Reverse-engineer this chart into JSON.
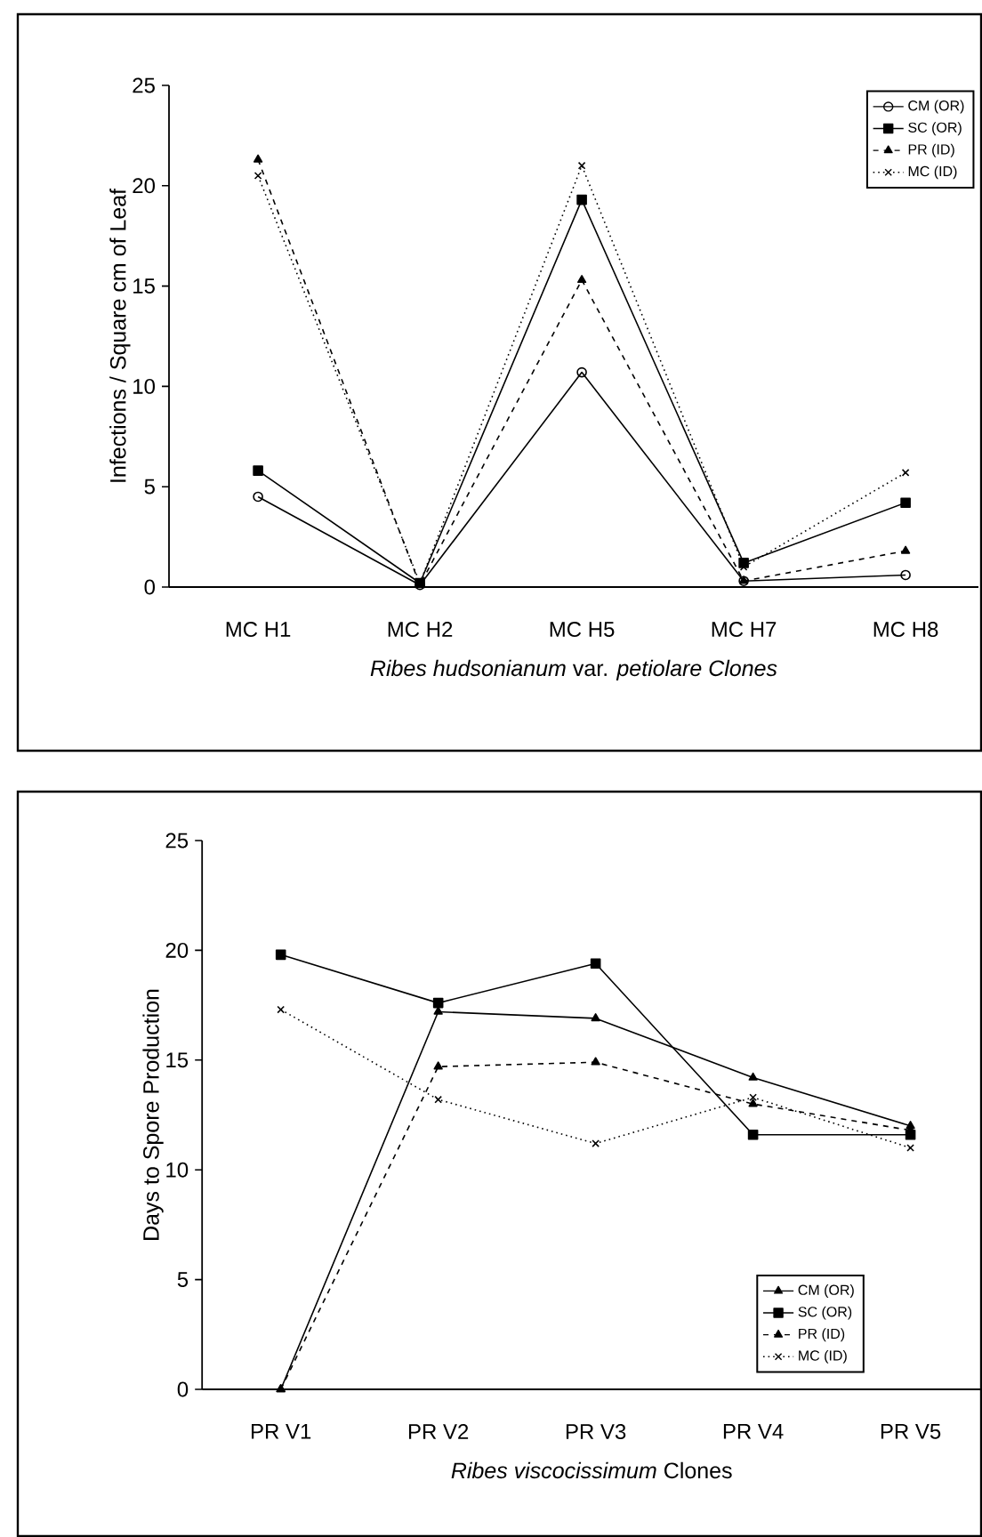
{
  "chart_data": [
    {
      "type": "line",
      "xlabel": "*Ribes hudsonianum* var. *petiolare Clones*",
      "ylabel": "Infections / Square cm of Leaf",
      "categories": [
        "MC H1",
        "MC H2",
        "MC H5",
        "MC H7",
        "MC H8"
      ],
      "ylim": [
        0,
        25
      ],
      "yticks": [
        0,
        5,
        10,
        15,
        20,
        25
      ],
      "legend": "top right",
      "series": [
        {
          "name": "CM (OR)",
          "color": "#000000",
          "marker": "circle",
          "line_style": "solid",
          "values": [
            4.5,
            0.1,
            10.7,
            0.3,
            0.6
          ]
        },
        {
          "name": "SC (OR)",
          "color": "#000000",
          "marker": "square",
          "line_style": "solid",
          "values": [
            5.8,
            0.2,
            19.3,
            1.2,
            4.2
          ]
        },
        {
          "name": "PR (ID)",
          "color": "#000000",
          "marker": "triangle",
          "line_style": "dashed",
          "values": [
            21.3,
            0.1,
            15.3,
            0.3,
            1.8
          ]
        },
        {
          "name": "MC (ID)",
          "color": "#000000",
          "marker": "cross",
          "line_style": "dotted",
          "values": [
            20.5,
            0.2,
            21.0,
            1.0,
            5.7
          ]
        }
      ]
    },
    {
      "type": "line",
      "xlabel": "*Ribes viscocissimum* Clones",
      "ylabel": "Days to Spore Production",
      "categories": [
        "PR V1",
        "PR V2",
        "PR V3",
        "PR V4",
        "PR V5"
      ],
      "ylim": [
        0,
        25
      ],
      "yticks": [
        0,
        5,
        10,
        15,
        20,
        25
      ],
      "legend": "bottom right",
      "series": [
        {
          "name": "CM (OR)",
          "color": "#000000",
          "marker": "triangle",
          "line_style": "solid",
          "values": [
            0,
            17.2,
            16.9,
            14.2,
            12.0
          ]
        },
        {
          "name": "SC (OR)",
          "color": "#000000",
          "marker": "square",
          "line_style": "solid",
          "values": [
            19.8,
            17.6,
            19.4,
            11.6,
            11.6
          ]
        },
        {
          "name": "PR (ID)",
          "color": "#000000",
          "marker": "triangle",
          "line_style": "dashed",
          "values": [
            0,
            14.7,
            14.9,
            13.0,
            11.8
          ]
        },
        {
          "name": "MC (ID)",
          "color": "#000000",
          "marker": "cross",
          "line_style": "dotted",
          "values": [
            17.3,
            13.2,
            11.2,
            13.3,
            11.0
          ]
        }
      ]
    }
  ]
}
